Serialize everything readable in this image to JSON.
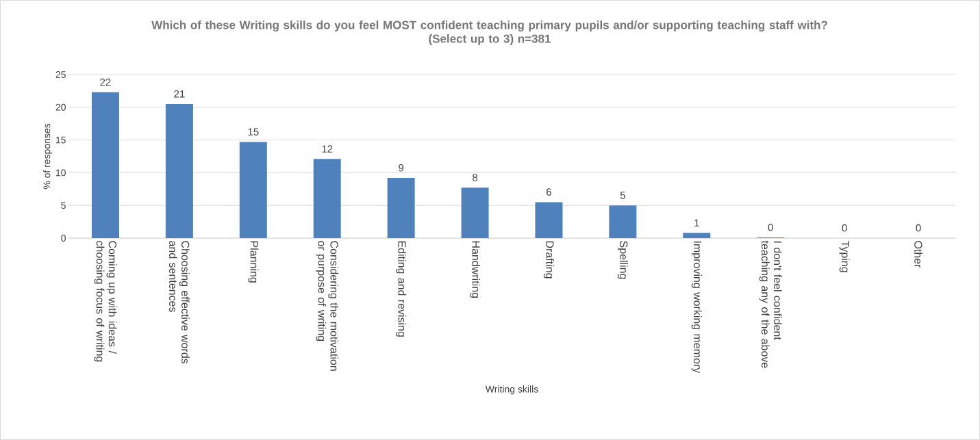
{
  "chart_data": {
    "type": "bar",
    "title": "Which of these Writing skills do you feel MOST confident teaching primary pupils and/or supporting teaching staff with? (Select up to 3) n=381",
    "xlabel": "Writing skills",
    "ylabel": "% of responses",
    "categories": [
      "Coming up with ideas / choosing focus of writing",
      "Choosing effective words and sentences",
      "Planning",
      "Considering the motivation or purpose of writing",
      "Editing and revising",
      "Handwriting",
      "Drafting",
      "Spelling",
      "Improving working memory",
      "I don't feel confident teaching any of the above",
      "Typing",
      "Other"
    ],
    "values": [
      22.3,
      20.5,
      14.7,
      12.1,
      9.2,
      7.7,
      5.5,
      5.0,
      0.8,
      0.1,
      0,
      0
    ],
    "value_labels": [
      "22",
      "21",
      "15",
      "12",
      "9",
      "8",
      "6",
      "5",
      "1",
      "0",
      "0",
      "0"
    ],
    "color": "#4f81bd",
    "ylim": [
      0,
      25
    ],
    "yticks": [
      0,
      5,
      10,
      15,
      20,
      25
    ],
    "grid": "y"
  }
}
